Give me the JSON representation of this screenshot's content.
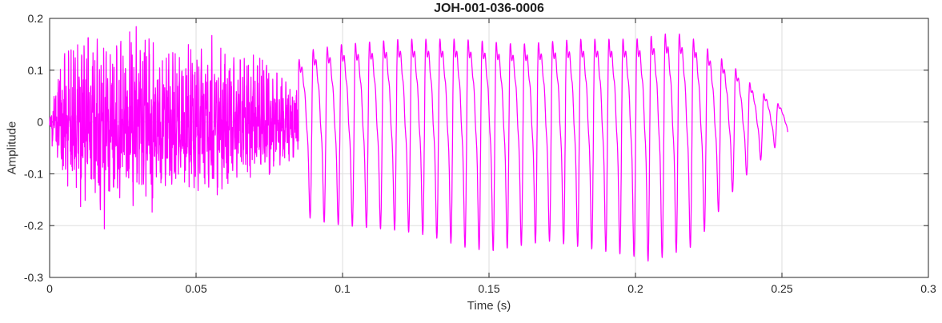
{
  "chart_data": {
    "type": "line",
    "title": "JOH-001-036-0006",
    "xlabel": "Time (s)",
    "ylabel": "Amplitude",
    "xlim": [
      0,
      0.3
    ],
    "ylim": [
      -0.3,
      0.2
    ],
    "xticks": [
      0,
      0.05,
      0.1,
      0.15,
      0.2,
      0.25,
      0.3
    ],
    "xtick_labels": [
      "0",
      "0.05",
      "0.1",
      "0.15",
      "0.2",
      "0.25",
      "0.3"
    ],
    "yticks": [
      -0.3,
      -0.2,
      -0.1,
      0,
      0.1,
      0.2
    ],
    "ytick_labels": [
      "-0.3",
      "-0.2",
      "-0.1",
      "0",
      "0.1",
      "0.2"
    ],
    "grid": true,
    "legend": "none",
    "line_color": "#FF00FF",
    "axes_color": "#262626",
    "grid_color": "#DEDEDE",
    "background_color": "#FFFFFF",
    "waveform": {
      "description": "speech waveform: dense unvoiced noise burst 0-0.085s, periodic voiced segment ~208Hz 0.085-0.235s, decaying tail to 0.252s",
      "sample_rate": 16000,
      "t_start": 0,
      "t_end": 0.252,
      "unvoiced": {
        "t0": 0,
        "t1": 0.085,
        "seed": 7,
        "noise_mix": 0.55,
        "components": [
          {
            "f": 1350,
            "a": 0.5
          },
          {
            "f": 2250,
            "a": 0.35
          },
          {
            "f": 3600,
            "a": 0.28
          },
          {
            "f": 620,
            "a": 0.3
          }
        ],
        "pos_env": [
          [
            0,
            0.02
          ],
          [
            0.002,
            0.08
          ],
          [
            0.005,
            0.14
          ],
          [
            0.01,
            0.15
          ],
          [
            0.015,
            0.17
          ],
          [
            0.02,
            0.13
          ],
          [
            0.025,
            0.16
          ],
          [
            0.03,
            0.19
          ],
          [
            0.034,
            0.16
          ],
          [
            0.04,
            0.13
          ],
          [
            0.045,
            0.14
          ],
          [
            0.05,
            0.16
          ],
          [
            0.055,
            0.17
          ],
          [
            0.06,
            0.13
          ],
          [
            0.065,
            0.12
          ],
          [
            0.07,
            0.13
          ],
          [
            0.075,
            0.11
          ],
          [
            0.08,
            0.08
          ],
          [
            0.085,
            0.06
          ]
        ],
        "neg_env": [
          [
            0,
            0.02
          ],
          [
            0.002,
            0.08
          ],
          [
            0.005,
            0.13
          ],
          [
            0.01,
            0.16
          ],
          [
            0.015,
            0.19
          ],
          [
            0.018,
            0.22
          ],
          [
            0.022,
            0.17
          ],
          [
            0.03,
            0.16
          ],
          [
            0.035,
            0.18
          ],
          [
            0.04,
            0.15
          ],
          [
            0.045,
            0.14
          ],
          [
            0.05,
            0.17
          ],
          [
            0.055,
            0.15
          ],
          [
            0.06,
            0.14
          ],
          [
            0.065,
            0.13
          ],
          [
            0.07,
            0.12
          ],
          [
            0.075,
            0.11
          ],
          [
            0.08,
            0.09
          ],
          [
            0.085,
            0.06
          ]
        ]
      },
      "voiced": {
        "t0": 0.085,
        "t1": 0.252,
        "f0": 208,
        "harmonics": [
          {
            "k": 1,
            "a": 1.0,
            "p": 0
          },
          {
            "k": 2,
            "a": 0.5,
            "p": 0.9
          },
          {
            "k": 3,
            "a": 0.28,
            "p": 1.7
          },
          {
            "k": 4,
            "a": 0.14,
            "p": 2.4
          }
        ],
        "pos_env": [
          [
            0.085,
            0.12
          ],
          [
            0.09,
            0.14
          ],
          [
            0.1,
            0.15
          ],
          [
            0.12,
            0.16
          ],
          [
            0.14,
            0.16
          ],
          [
            0.16,
            0.15
          ],
          [
            0.18,
            0.16
          ],
          [
            0.2,
            0.16
          ],
          [
            0.21,
            0.17
          ],
          [
            0.215,
            0.17
          ],
          [
            0.22,
            0.16
          ],
          [
            0.225,
            0.14
          ],
          [
            0.23,
            0.12
          ],
          [
            0.235,
            0.1
          ],
          [
            0.24,
            0.07
          ],
          [
            0.245,
            0.05
          ],
          [
            0.25,
            0.03
          ],
          [
            0.252,
            0.02
          ]
        ],
        "neg_env": [
          [
            0.085,
            0.17
          ],
          [
            0.09,
            0.19
          ],
          [
            0.1,
            0.2
          ],
          [
            0.12,
            0.21
          ],
          [
            0.13,
            0.22
          ],
          [
            0.14,
            0.24
          ],
          [
            0.15,
            0.25
          ],
          [
            0.16,
            0.24
          ],
          [
            0.17,
            0.23
          ],
          [
            0.18,
            0.24
          ],
          [
            0.19,
            0.25
          ],
          [
            0.2,
            0.26
          ],
          [
            0.205,
            0.27
          ],
          [
            0.21,
            0.26
          ],
          [
            0.215,
            0.25
          ],
          [
            0.22,
            0.24
          ],
          [
            0.225,
            0.2
          ],
          [
            0.23,
            0.16
          ],
          [
            0.235,
            0.12
          ],
          [
            0.24,
            0.09
          ],
          [
            0.245,
            0.06
          ],
          [
            0.25,
            0.04
          ],
          [
            0.252,
            0.03
          ]
        ]
      }
    }
  }
}
